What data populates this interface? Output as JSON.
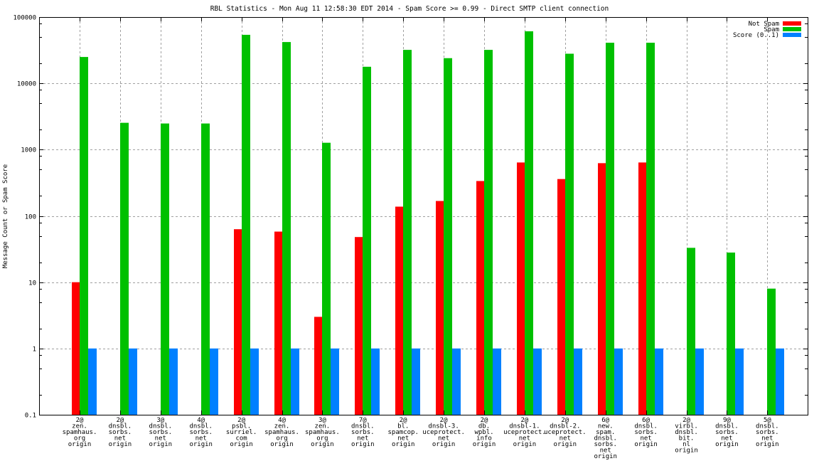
{
  "chart_data": {
    "type": "bar",
    "title": "RBL Statistics - Mon Aug 11 12:58:30 EDT 2014 - Spam Score >= 0.99 - Direct SMTP client connection",
    "xlabel": "",
    "ylabel": "Message Count or Spam Score",
    "yscale": "log",
    "ylim": [
      0.1,
      100000
    ],
    "yticks": [
      "0.1",
      "1",
      "10",
      "100",
      "1000",
      "10000",
      "100000"
    ],
    "grid": true,
    "legend_position": "top-right",
    "categories": [
      [
        "2@",
        "zen.",
        "spamhaus.",
        "org",
        "origin"
      ],
      [
        "2@",
        "dnsbl.",
        "sorbs.",
        "net",
        "origin"
      ],
      [
        "3@",
        "dnsbl.",
        "sorbs.",
        "net",
        "origin"
      ],
      [
        "4@",
        "dnsbl.",
        "sorbs.",
        "net",
        "origin"
      ],
      [
        "2@",
        "psbl.",
        "surriel.",
        "com",
        "origin"
      ],
      [
        "4@",
        "zen.",
        "spamhaus.",
        "org",
        "origin"
      ],
      [
        "3@",
        "zen.",
        "spamhaus.",
        "org",
        "origin"
      ],
      [
        "7@",
        "dnsbl.",
        "sorbs.",
        "net",
        "origin"
      ],
      [
        "2@",
        "bl.",
        "spamcop.",
        "net",
        "origin"
      ],
      [
        "2@",
        "dnsbl-3.",
        "uceprotect.",
        "net",
        "origin"
      ],
      [
        "2@",
        "db.",
        "wpbl.",
        "info",
        "origin"
      ],
      [
        "2@",
        "dnsbl-1.",
        "uceprotect.",
        "net",
        "origin"
      ],
      [
        "2@",
        "dnsbl-2.",
        "uceprotect.",
        "net",
        "origin"
      ],
      [
        "6@",
        "new.",
        "spam.",
        "dnsbl.",
        "sorbs.",
        "net",
        "origin"
      ],
      [
        "6@",
        "dnsbl.",
        "sorbs.",
        "net",
        "origin"
      ],
      [
        "2@",
        "virbl.",
        "dnsbl.",
        "bit.",
        "nl",
        "origin"
      ],
      [
        "9@",
        "dnsbl.",
        "sorbs.",
        "net",
        "origin"
      ],
      [
        "5@",
        "dnsbl.",
        "sorbs.",
        "net",
        "origin"
      ]
    ],
    "series": [
      {
        "name": "Not Spam",
        "color": "#ff0000",
        "values": [
          10,
          null,
          null,
          null,
          63,
          58,
          3,
          48,
          138,
          168,
          336,
          640,
          360,
          625,
          640,
          null,
          null,
          null
        ]
      },
      {
        "name": "Spam",
        "color": "#00c000",
        "values": [
          25000,
          2540,
          2480,
          2480,
          54000,
          42000,
          1270,
          17800,
          32000,
          24000,
          32000,
          61000,
          28000,
          41000,
          41000,
          33,
          28,
          8
        ]
      },
      {
        "name": "Score (0..1)",
        "color": "#0080ff",
        "values": [
          1,
          1,
          1,
          1,
          1,
          1,
          1,
          1,
          1,
          1,
          1,
          1,
          1,
          1,
          1,
          1,
          1,
          1
        ]
      }
    ]
  }
}
